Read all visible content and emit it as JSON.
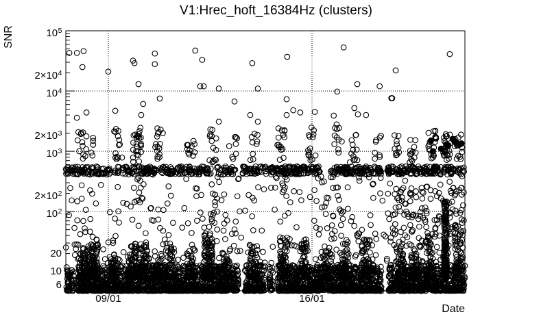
{
  "window": {
    "background": "#ffffff",
    "foreground": "#000000"
  },
  "chart_data": {
    "type": "scatter",
    "title": "V1:Hrec_hoft_16384Hz (clusters)",
    "xlabel": "Date",
    "ylabel": "SNR",
    "grid": "dotted",
    "legend": "none",
    "marker": {
      "shape": "open-circle",
      "color": "#000000",
      "radius_px": 3.8
    },
    "x_axis": {
      "kind": "time-days",
      "span_days": 13.72,
      "major_ticks": [
        {
          "label": "09/01",
          "day": 1.462
        },
        {
          "label": "16/01",
          "day": 8.462
        }
      ],
      "minor_tick_start_day": 0.462,
      "minor_tick_step_days": 1
    },
    "y_axis": {
      "scale": "log",
      "min": 4.82,
      "max": 100000,
      "ticks": [
        {
          "pre": "",
          "base": "10",
          "exp": "5",
          "value": 100000
        },
        {
          "pre": "2×",
          "base": "10",
          "exp": "4",
          "value": 20000
        },
        {
          "pre": "",
          "base": "10",
          "exp": "4",
          "value": 10000
        },
        {
          "pre": "2×",
          "base": "10",
          "exp": "3",
          "value": 2000
        },
        {
          "pre": "",
          "base": "10",
          "exp": "3",
          "value": 1000
        },
        {
          "pre": "2×",
          "base": "10",
          "exp": "2",
          "value": 200
        },
        {
          "pre": "",
          "base": "10",
          "exp": "2",
          "value": 100
        },
        {
          "pre": "",
          "base": "20",
          "exp": "",
          "value": 20
        },
        {
          "pre": "",
          "base": "10",
          "exp": "",
          "value": 10
        },
        {
          "pre": "",
          "base": "6",
          "exp": "",
          "value": 6
        }
      ],
      "grid_values": [
        10,
        100,
        1000,
        10000
      ]
    },
    "seed": 20170116,
    "layers": [
      {
        "name": "noise-floor",
        "kind": "band",
        "days": [
          0,
          13.72
        ],
        "snr": [
          4.82,
          13
        ],
        "count": 3000,
        "bias": 2.0,
        "gaps": [
          [
            0.27,
            0.43
          ],
          [
            5.94,
            6.15
          ],
          [
            6.85,
            7.0
          ],
          [
            7.12,
            7.28
          ],
          [
            8.7,
            8.88
          ],
          [
            10.86,
            11.08
          ]
        ]
      },
      {
        "name": "floor-bumps",
        "kind": "columns",
        "width_days": 0.3,
        "bias": 1.8,
        "columns": [
          [
            0.6,
            60,
            8,
            25
          ],
          [
            0.95,
            80,
            8,
            35
          ],
          [
            1.7,
            40,
            8,
            20
          ],
          [
            2.3,
            70,
            8,
            30
          ],
          [
            2.65,
            50,
            8,
            28
          ],
          [
            3.15,
            40,
            8,
            22
          ],
          [
            3.6,
            50,
            8,
            30
          ],
          [
            4.3,
            40,
            8,
            25
          ],
          [
            4.9,
            90,
            8,
            45
          ],
          [
            5.5,
            40,
            8,
            25
          ],
          [
            6.45,
            50,
            8,
            30
          ],
          [
            7.5,
            60,
            8,
            40
          ],
          [
            8.2,
            50,
            8,
            35
          ],
          [
            9.0,
            40,
            8,
            30
          ],
          [
            9.6,
            60,
            8,
            40
          ],
          [
            10.3,
            50,
            8,
            35
          ],
          [
            11.5,
            50,
            8,
            30
          ],
          [
            12.0,
            40,
            8,
            25
          ],
          [
            12.5,
            60,
            8,
            40
          ],
          [
            13.5,
            60,
            8,
            60
          ]
        ]
      },
      {
        "name": "floor-spikes",
        "kind": "columns",
        "width_days": 0.1,
        "bias": 1.5,
        "columns": [
          [
            13.05,
            150,
            8,
            150
          ],
          [
            8.77,
            50,
            5,
            12
          ]
        ]
      },
      {
        "name": "snr-line-band",
        "kind": "band",
        "days": [
          0,
          13.72
        ],
        "snr": [
          410,
          560
        ],
        "count": 760,
        "bias": 1.0,
        "gaps": [
          [
            5.0,
            5.2
          ],
          [
            5.85,
            6.08
          ],
          [
            8.74,
            9.1
          ],
          [
            10.87,
            11.03
          ]
        ]
      },
      {
        "name": "mid-clusters",
        "kind": "columns",
        "width_days": 0.28,
        "bias": 1.0,
        "columns": [
          [
            0.5,
            10,
            700,
            2300
          ],
          [
            0.8,
            8,
            800,
            2000
          ],
          [
            1.8,
            14,
            650,
            2500
          ],
          [
            2.45,
            26,
            600,
            2600
          ],
          [
            3.2,
            16,
            650,
            2400
          ],
          [
            4.3,
            12,
            700,
            2200
          ],
          [
            5.05,
            14,
            600,
            2500
          ],
          [
            5.75,
            8,
            700,
            2000
          ],
          [
            6.45,
            9,
            700,
            2200
          ],
          [
            7.4,
            15,
            650,
            2500
          ],
          [
            8.45,
            15,
            650,
            2500
          ],
          [
            9.35,
            10,
            700,
            2800
          ],
          [
            9.9,
            12,
            650,
            2300
          ],
          [
            10.7,
            8,
            700,
            2000
          ],
          [
            11.35,
            10,
            700,
            2200
          ],
          [
            11.9,
            12,
            650,
            2300
          ],
          [
            12.6,
            20,
            700,
            2200
          ],
          [
            13.1,
            25,
            700,
            2200
          ],
          [
            13.5,
            15,
            700,
            2000
          ]
        ]
      },
      {
        "name": "below-band-clusters",
        "kind": "columns",
        "width_days": 0.25,
        "bias": 1.0,
        "columns": [
          [
            2.55,
            8,
            120,
            380
          ],
          [
            5.1,
            10,
            60,
            380
          ],
          [
            7.5,
            6,
            150,
            380
          ],
          [
            9.4,
            6,
            100,
            300
          ],
          [
            11.6,
            8,
            80,
            350
          ],
          [
            12.3,
            8,
            60,
            300
          ],
          [
            13.3,
            10,
            40,
            300
          ]
        ]
      },
      {
        "name": "mid-sparse",
        "kind": "band",
        "days": [
          0,
          13.72
        ],
        "snr": [
          14,
          400
        ],
        "count": 330,
        "bias": 1.35,
        "gaps": []
      },
      {
        "name": "right-elevated",
        "kind": "band",
        "days": [
          11.1,
          13.7
        ],
        "snr": [
          25,
          260
        ],
        "count": 90,
        "bias": 1.2,
        "gaps": []
      }
    ],
    "outliers": [
      [
        0.12,
        43000
      ],
      [
        0.38,
        43000
      ],
      [
        0.61,
        46000
      ],
      [
        0.57,
        25000
      ],
      [
        1.46,
        21000
      ],
      [
        2.31,
        32000
      ],
      [
        2.36,
        29000
      ],
      [
        3.06,
        42000
      ],
      [
        3.06,
        28000
      ],
      [
        2.5,
        13000
      ],
      [
        4.45,
        47000
      ],
      [
        4.69,
        33000
      ],
      [
        4.62,
        12000
      ],
      [
        4.74,
        12000
      ],
      [
        5.26,
        11000
      ],
      [
        6.41,
        29000
      ],
      [
        6.6,
        11000
      ],
      [
        3.23,
        7500
      ],
      [
        2.66,
        6100
      ],
      [
        2.59,
        4000
      ],
      [
        1.7,
        4700
      ],
      [
        0.71,
        4400
      ],
      [
        0.38,
        3600
      ],
      [
        5.8,
        6700
      ],
      [
        6.34,
        4000
      ],
      [
        7.61,
        37000
      ],
      [
        9.55,
        53000
      ],
      [
        13.2,
        41000
      ],
      [
        11.34,
        22000
      ],
      [
        10.02,
        13000
      ],
      [
        10.79,
        12000
      ],
      [
        9.33,
        9800
      ],
      [
        11.19,
        7600
      ],
      [
        7.59,
        7300
      ],
      [
        7.82,
        4800
      ],
      [
        8.06,
        4400
      ],
      [
        7.59,
        4000
      ],
      [
        8.56,
        4500
      ],
      [
        9.21,
        3900
      ],
      [
        9.92,
        5200
      ],
      [
        10.04,
        4100
      ],
      [
        10.32,
        4000
      ],
      [
        9.31,
        2800
      ],
      [
        11.22,
        7600
      ],
      [
        5.26,
        3100
      ],
      [
        6.6,
        3100
      ]
    ],
    "filled_points": [
      [
        12.55,
        1500
      ],
      [
        12.62,
        1000
      ],
      [
        12.9,
        1100
      ],
      [
        13.08,
        1300
      ],
      [
        13.15,
        1250
      ],
      [
        13.3,
        1600
      ],
      [
        13.35,
        1500
      ],
      [
        13.42,
        1400
      ],
      [
        13.55,
        1300
      ],
      [
        13.6,
        1350
      ]
    ]
  }
}
